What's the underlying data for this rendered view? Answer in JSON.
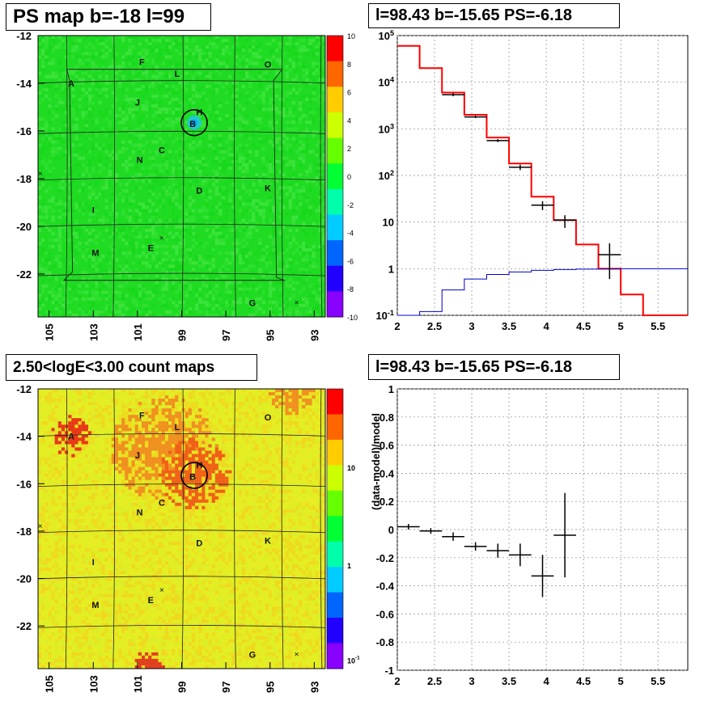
{
  "titles": {
    "top_left": "PS map b=-18 l=99",
    "top_right": "l=98.43 b=-15.65 PS=-6.18",
    "bottom_left": "2.50<logE<3.00 count maps",
    "bottom_right": "l=98.43 b=-15.65 PS=-6.18"
  },
  "colors": {
    "model_line": "#ff0000",
    "background_model_line": "#0000cc",
    "data_points": "#000000",
    "grid": "#666666",
    "map_background_ps": "#22dd22",
    "map_background_counts": "#e6ee22"
  },
  "chart_data": [
    {
      "type": "heatmap",
      "title": "PS map b=-18 l=99",
      "xlabel": "",
      "ylabel": "",
      "x_ticks": [
        "105",
        "103",
        "101",
        "99",
        "97",
        "95",
        "93"
      ],
      "y_ticks": [
        "-12",
        "-14",
        "-16",
        "-18",
        "-20",
        "-22"
      ],
      "xlim": [
        105.5,
        92.5
      ],
      "ylim": [
        -23.8,
        -12
      ],
      "colorbar": {
        "ticks": [
          "10",
          "8",
          "6",
          "4",
          "2",
          "0",
          "-2",
          "-4",
          "-6",
          "-8",
          "-10"
        ],
        "range": [
          -10,
          10
        ],
        "palette": [
          "#ff0000",
          "#ff6600",
          "#ffcc00",
          "#ccff00",
          "#66ff00",
          "#00ff33",
          "#00ffaa",
          "#00ccff",
          "#0066ff",
          "#2200ff",
          "#8800ff"
        ]
      },
      "source_labels": [
        {
          "label": "A",
          "l": 104.0,
          "b": -14.0
        },
        {
          "label": "F",
          "l": 100.8,
          "b": -13.1
        },
        {
          "label": "L",
          "l": 99.2,
          "b": -13.6
        },
        {
          "label": "O",
          "l": 95.1,
          "b": -13.2
        },
        {
          "label": "J",
          "l": 101.0,
          "b": -14.8
        },
        {
          "label": "H",
          "l": 98.2,
          "b": -15.2
        },
        {
          "label": "B",
          "l": 98.5,
          "b": -15.7
        },
        {
          "label": "C",
          "l": 99.9,
          "b": -16.8
        },
        {
          "label": "N",
          "l": 100.9,
          "b": -17.2
        },
        {
          "label": "D",
          "l": 98.2,
          "b": -18.5
        },
        {
          "label": "K",
          "l": 95.1,
          "b": -18.4
        },
        {
          "label": "I",
          "l": 103.0,
          "b": -19.3
        },
        {
          "label": "M",
          "l": 102.9,
          "b": -21.1
        },
        {
          "label": "E",
          "l": 100.4,
          "b": -20.9
        },
        {
          "label": "G",
          "l": 95.8,
          "b": -23.2
        }
      ],
      "crosses": [
        {
          "l": 99.9,
          "b": -20.5
        },
        {
          "l": 93.8,
          "b": -23.2
        },
        {
          "l": 105.4,
          "b": -17.8
        }
      ],
      "circle": {
        "l": 98.43,
        "b": -15.65
      }
    },
    {
      "type": "line",
      "title": "l=98.43 b=-15.65 PS=-6.18",
      "xlabel": "",
      "ylabel": "",
      "xlim": [
        2,
        5.9
      ],
      "ylim": [
        0.1,
        100000
      ],
      "log_y": true,
      "x_ticks": [
        "2",
        "2.5",
        "3",
        "3.5",
        "4",
        "4.5",
        "5",
        "5.5"
      ],
      "y_ticks": [
        "10^-1",
        "1",
        "10",
        "10^2",
        "10^3",
        "10^4",
        "10^5"
      ],
      "grid": true,
      "bin_edges": [
        2.0,
        2.3,
        2.6,
        2.9,
        3.2,
        3.5,
        3.8,
        4.1,
        4.4,
        4.7,
        5.0,
        5.3,
        5.6,
        5.9
      ],
      "series": [
        {
          "values": [
            60000,
            20000,
            6000,
            2000,
            650,
            180,
            35,
            11,
            3.3,
            1.0,
            0.28,
            0.1,
            0.1
          ]
        },
        {
          "values": [
            0.1,
            0.12,
            0.35,
            0.6,
            0.75,
            0.85,
            0.92,
            0.96,
            0.98,
            0.99,
            1.0,
            1.0,
            1.0
          ]
        },
        {
          "x": [
            2.75,
            3.05,
            3.35,
            3.65,
            3.95,
            4.25,
            4.85
          ],
          "y": [
            5400,
            1800,
            560,
            150,
            23,
            11,
            2.0
          ],
          "x_err": [
            0.15,
            0.15,
            0.15,
            0.15,
            0.15,
            0.15,
            0.15
          ],
          "y_low": [
            5000,
            1700,
            520,
            130,
            18,
            7.5,
            0.6
          ],
          "y_high": [
            5800,
            1900,
            600,
            170,
            28,
            14,
            3.5
          ]
        }
      ]
    },
    {
      "type": "heatmap",
      "title": "2.50<logE<3.00 count maps",
      "xlabel": "",
      "ylabel": "",
      "x_ticks": [
        "105",
        "103",
        "101",
        "99",
        "97",
        "95",
        "93"
      ],
      "y_ticks": [
        "-12",
        "-14",
        "-16",
        "-18",
        "-20",
        "-22"
      ],
      "colorbar": {
        "ticks": [
          "10",
          "1",
          "10^-1"
        ],
        "log": true,
        "palette": [
          "#ff0000",
          "#ff6600",
          "#ffcc00",
          "#ccff00",
          "#66ff00",
          "#00ff33",
          "#00ffaa",
          "#00ccff",
          "#0066ff",
          "#2200ff",
          "#8800ff"
        ]
      }
    },
    {
      "type": "scatter",
      "title": "l=98.43 b=-15.65 PS=-6.18",
      "xlabel": "",
      "ylabel": "(data-model)/model",
      "xlim": [
        2,
        5.9
      ],
      "ylim": [
        -1,
        1
      ],
      "x_ticks": [
        "2",
        "2.5",
        "3",
        "3.5",
        "4",
        "4.5",
        "5",
        "5.5"
      ],
      "y_ticks": [
        "1",
        "0.8",
        "0.6",
        "0.4",
        "0.2",
        "0",
        "-0.2",
        "-0.4",
        "-0.6",
        "-0.8",
        "-1"
      ],
      "grid": true,
      "x": [
        2.15,
        2.45,
        2.75,
        3.05,
        3.35,
        3.65,
        3.95,
        4.25
      ],
      "y": [
        0.02,
        -0.01,
        -0.05,
        -0.12,
        -0.15,
        -0.18,
        -0.33,
        -0.04
      ],
      "x_err": [
        0.15,
        0.15,
        0.15,
        0.15,
        0.15,
        0.15,
        0.15,
        0.15
      ],
      "y_err": [
        0.02,
        0.02,
        0.03,
        0.03,
        0.05,
        0.08,
        0.15,
        0.3
      ]
    }
  ]
}
